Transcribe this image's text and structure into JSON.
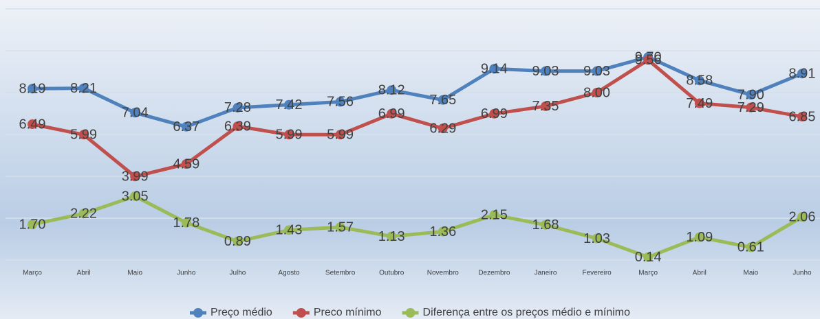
{
  "chart_data": {
    "type": "line",
    "categories": [
      "Março",
      "Abril",
      "Maio",
      "Junho",
      "Julho",
      "Agosto",
      "Setembro",
      "Outubro",
      "Novembro",
      "Dezembro",
      "Janeiro",
      "Fevereiro",
      "Março",
      "Abril",
      "Maio",
      "Junho"
    ],
    "series": [
      {
        "name": "Preço médio",
        "color": "#4f81bd",
        "values": [
          8.19,
          8.21,
          7.04,
          6.37,
          7.28,
          7.42,
          7.56,
          8.12,
          7.65,
          9.14,
          9.03,
          9.03,
          9.7,
          8.58,
          7.9,
          8.91
        ],
        "value_labels": [
          "8.19",
          "8.21",
          "7.04",
          "6.37",
          "7.28",
          "7.42",
          "7.56",
          "8.12",
          "7.65",
          "9.14",
          "9.03",
          "9.03",
          "9.70",
          "8.58",
          "7.90",
          "8.91"
        ]
      },
      {
        "name": "Preco mínimo",
        "color": "#c0504d",
        "values": [
          6.49,
          5.99,
          3.99,
          4.59,
          6.39,
          5.99,
          5.99,
          6.99,
          6.29,
          6.99,
          7.35,
          8.0,
          9.56,
          7.49,
          7.29,
          6.85
        ],
        "value_labels": [
          "6.49",
          "5.99",
          "3.99",
          "4.59",
          "6.39",
          "5.99",
          "5.99",
          "6.99",
          "6.29",
          "6.99",
          "7.35",
          "8.00",
          "9.56",
          "7.49",
          "7.29",
          "6.85"
        ]
      },
      {
        "name": "Diferença entre os preços médio e mínimo",
        "color": "#9bbb59",
        "values": [
          1.7,
          2.22,
          3.05,
          1.78,
          0.89,
          1.43,
          1.57,
          1.13,
          1.36,
          2.15,
          1.68,
          1.03,
          0.14,
          1.09,
          0.61,
          2.06
        ],
        "value_labels": [
          "1.70",
          "2.22",
          "3.05",
          "1.78",
          "0.89",
          "1.43",
          "1.57",
          "1.13",
          "1.36",
          "2.15",
          "1.68",
          "1.03",
          "0.14",
          "1.09",
          "0.61",
          "2.06"
        ]
      }
    ],
    "ylim": [
      0,
      12
    ],
    "yticks": [
      0,
      2,
      4,
      6,
      8,
      10,
      12
    ],
    "grid": true,
    "legend": "bottom"
  }
}
